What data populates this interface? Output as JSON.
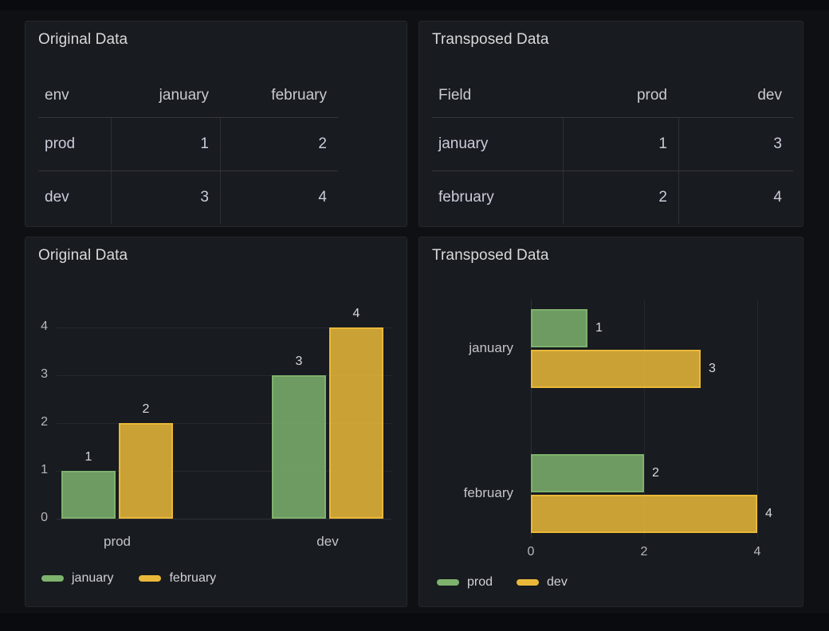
{
  "colors": {
    "green": "#7EB26D",
    "yellow": "#EAB839",
    "panel_bg": "#181b1f",
    "page_bg": "#0f1014",
    "text": "#CCCCDC"
  },
  "panels": {
    "table_original": {
      "title": "Original Data",
      "columns": [
        "env",
        "january",
        "february"
      ],
      "rows": [
        [
          "prod",
          "1",
          "2"
        ],
        [
          "dev",
          "3",
          "4"
        ]
      ]
    },
    "table_transposed": {
      "title": "Transposed Data",
      "columns": [
        "Field",
        "prod",
        "dev"
      ],
      "rows": [
        [
          "january",
          "1",
          "3"
        ],
        [
          "february",
          "2",
          "4"
        ]
      ]
    }
  },
  "chart_data": [
    {
      "type": "bar",
      "orientation": "vertical",
      "title": "Original Data",
      "categories": [
        "prod",
        "dev"
      ],
      "series": [
        {
          "name": "january",
          "color": "#7EB26D",
          "values": [
            1,
            3
          ]
        },
        {
          "name": "february",
          "color": "#EAB839",
          "values": [
            2,
            4
          ]
        }
      ],
      "ylim": [
        0,
        4
      ],
      "yticks": [
        0,
        1,
        2,
        3,
        4
      ],
      "grid": true,
      "value_labels": true,
      "legend_position": "bottom-left"
    },
    {
      "type": "bar",
      "orientation": "horizontal",
      "title": "Transposed Data",
      "categories": [
        "january",
        "february"
      ],
      "series": [
        {
          "name": "prod",
          "color": "#7EB26D",
          "values": [
            1,
            2
          ]
        },
        {
          "name": "dev",
          "color": "#EAB839",
          "values": [
            3,
            4
          ]
        }
      ],
      "xlim": [
        0,
        4
      ],
      "xticks": [
        0,
        2,
        4
      ],
      "grid": true,
      "value_labels": true,
      "legend_position": "bottom-left"
    }
  ]
}
